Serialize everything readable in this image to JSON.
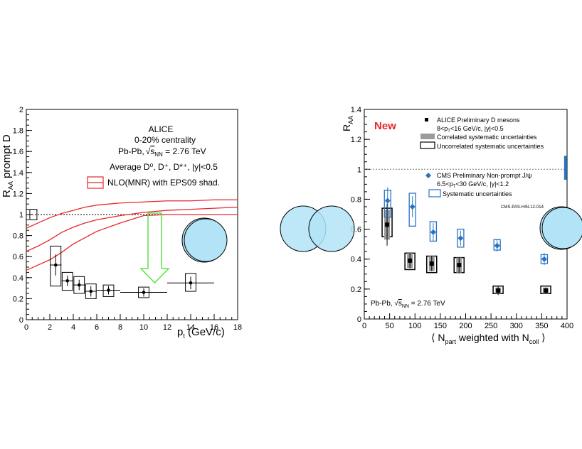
{
  "left_panel": {
    "ylabel": "R_AA prompt D",
    "xlabel": "p_t (GeV/c)",
    "legend": {
      "line1": "ALICE",
      "line2": "0-20% centrality",
      "line3_prefix": "Pb-Pb,",
      "line3_suffix": " = 2.76 TeV",
      "line3_sqrt": "s",
      "line3_sub": "NN",
      "line4": "Average D⁰, D⁺, D*⁺, |y|<0.5",
      "nlo": "NLO(MNR) with EPS09 shad."
    }
  },
  "right_panel": {
    "ylabel": "R_AA",
    "xlabel": "⟨ N_part weighted with N_coll ⟩",
    "new_label": "New",
    "alice_legend_1": "ALICE Preliminary D mesons",
    "alice_legend_2": "8<p_T<16 GeV/c, |y|<0.5",
    "corr_label": "Correlated systematic uncertainties",
    "uncorr_label": "Uncorrelated systematic uncertainties",
    "cms_legend_1": "CMS Preliminary Non-prompt J/ψ",
    "cms_legend_2": "6.5<p_T<30 GeV/c, |y|<1.2",
    "cms_syst": "Systematic uncertainties",
    "pas": "CMS-PAS-HIN-12-014",
    "collision": "Pb-Pb, √s_NN = 2.76 TeV"
  },
  "colors": {
    "nlo": "#e8262a",
    "arrow": "#5fe04a",
    "nucleus": "#b3e3f7",
    "cms": "#2a72c2",
    "new": "#e8262a",
    "grey_band": "#9b9b9b"
  },
  "chart_data": [
    {
      "type": "scatter",
      "title": "",
      "xlabel": "p_t (GeV/c)",
      "ylabel": "R_AA prompt D",
      "xlim": [
        0,
        18
      ],
      "ylim": [
        0,
        2
      ],
      "xticks": [
        0,
        2,
        4,
        6,
        8,
        10,
        12,
        14,
        16,
        18
      ],
      "yticks": [
        0,
        0.2,
        0.4,
        0.6,
        0.8,
        1,
        1.2,
        1.4,
        1.6,
        1.8,
        2
      ],
      "ref_line": 1,
      "points": [
        {
          "x": 2.5,
          "y": 0.52,
          "xerr": 0.5,
          "yerr": 0.1,
          "box_lo": 0.32,
          "box_hi": 0.7
        },
        {
          "x": 3.5,
          "y": 0.37,
          "xerr": 0.5,
          "yerr": 0.05,
          "box_lo": 0.28,
          "box_hi": 0.45
        },
        {
          "x": 4.5,
          "y": 0.33,
          "xerr": 0.5,
          "yerr": 0.05,
          "box_lo": 0.25,
          "box_hi": 0.41
        },
        {
          "x": 5.5,
          "y": 0.27,
          "xerr": 0.5,
          "yerr": 0.05,
          "box_lo": 0.2,
          "box_hi": 0.34
        },
        {
          "x": 7,
          "y": 0.28,
          "xerr": 1,
          "yerr": 0.04,
          "box_lo": 0.22,
          "box_hi": 0.33
        },
        {
          "x": 10,
          "y": 0.26,
          "xerr": 2,
          "yerr": 0.04,
          "box_lo": 0.21,
          "box_hi": 0.31
        },
        {
          "x": 14,
          "y": 0.35,
          "xerr": 2,
          "yerr": 0.06,
          "box_lo": 0.27,
          "box_hi": 0.44
        }
      ],
      "norm_box": {
        "x": 0.6,
        "lo": 0.95,
        "hi": 1.05
      },
      "nlo_band": {
        "name": "NLO(MNR) with EPS09 shad.",
        "x": [
          0,
          1,
          2,
          3,
          4,
          5,
          6,
          8,
          10,
          12,
          14,
          16,
          18
        ],
        "central": [
          0.65,
          0.7,
          0.76,
          0.83,
          0.88,
          0.92,
          0.95,
          0.99,
          1.02,
          1.04,
          1.05,
          1.06,
          1.07
        ],
        "upper": [
          0.87,
          0.92,
          0.97,
          1.01,
          1.04,
          1.07,
          1.09,
          1.11,
          1.12,
          1.13,
          1.13,
          1.14,
          1.14
        ],
        "lower": [
          0.47,
          0.52,
          0.57,
          0.64,
          0.72,
          0.78,
          0.84,
          0.92,
          0.99,
          1.0,
          1.0,
          1.0,
          1.0
        ]
      }
    },
    {
      "type": "scatter",
      "title": "",
      "xlabel": "⟨ N_part weighted with N_coll ⟩",
      "ylabel": "R_AA",
      "xlim": [
        0,
        400
      ],
      "ylim": [
        0,
        1.4
      ],
      "xticks": [
        0,
        50,
        100,
        150,
        200,
        250,
        300,
        350,
        400
      ],
      "yticks": [
        0,
        0.2,
        0.4,
        0.6,
        0.8,
        1,
        1.2,
        1.4
      ],
      "ref_line": 1,
      "series": [
        {
          "name": "ALICE Preliminary D mesons",
          "x": [
            45,
            90,
            133,
            187,
            264,
            358
          ],
          "y": [
            0.63,
            0.39,
            0.37,
            0.36,
            0.19,
            0.19
          ],
          "stat": [
            0.14,
            0.05,
            0.05,
            0.05,
            0.03,
            0.02
          ],
          "corr": [
            0.1,
            0.05,
            0.05,
            0.05,
            0.02,
            0.02
          ],
          "uncorr_lo": [
            0.55,
            0.33,
            0.31,
            0.31,
            0.17,
            0.17
          ],
          "uncorr_hi": [
            0.74,
            0.44,
            0.42,
            0.41,
            0.22,
            0.22
          ]
        },
        {
          "name": "CMS Preliminary Non-prompt J/ψ",
          "x": [
            46,
            95,
            136,
            190,
            262,
            355
          ],
          "y": [
            0.79,
            0.75,
            0.58,
            0.54,
            0.49,
            0.4
          ],
          "stat": [
            0.09,
            0.07,
            0.06,
            0.05,
            0.04,
            0.04
          ],
          "syst_lo": [
            0.68,
            0.62,
            0.52,
            0.48,
            0.46,
            0.37
          ],
          "syst_hi": [
            0.86,
            0.84,
            0.65,
            0.6,
            0.53,
            0.43
          ]
        }
      ],
      "global_box": {
        "x": 397,
        "lo": 0.93,
        "hi": 1.09
      }
    }
  ]
}
